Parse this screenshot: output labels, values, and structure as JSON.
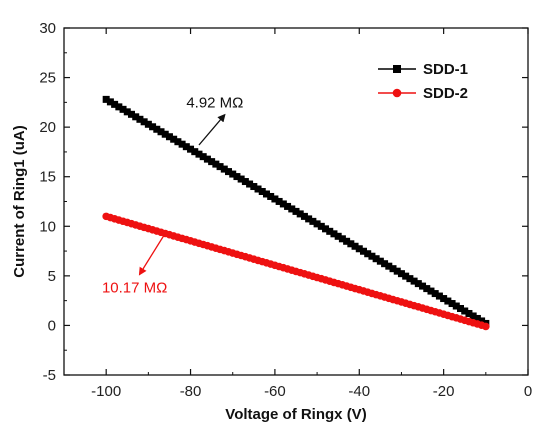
{
  "chart_data": {
    "type": "line",
    "title": "",
    "xlabel": "Voltage of Ringx (V)",
    "ylabel": "Current of Ring1 (uA)",
    "xlim": [
      -110,
      0
    ],
    "ylim": [
      -5,
      30
    ],
    "x_ticks": [
      -100,
      -80,
      -60,
      -40,
      -20,
      0
    ],
    "y_ticks": [
      -5,
      0,
      5,
      10,
      15,
      20,
      25,
      30
    ],
    "grid": false,
    "legend_position": "top-right",
    "series": [
      {
        "name": "SDD-1",
        "color": "#000000",
        "marker": "square",
        "x_start": -100,
        "x_end": -10,
        "x_step": 1,
        "y_start": 22.8,
        "y_end": 0.2
      },
      {
        "name": "SDD-2",
        "color": "#ee1111",
        "marker": "circle",
        "x_start": -100,
        "x_end": -10,
        "x_step": 1,
        "y_start": 11.0,
        "y_end": -0.1
      }
    ],
    "annotations": [
      {
        "text": "4.92 MΩ",
        "color": "#111111",
        "x": -81,
        "y": 22.0,
        "arrow_from": [
          -78,
          18.2
        ],
        "arrow_to": [
          -72,
          21.2
        ]
      },
      {
        "text": "10.17 MΩ",
        "color": "#ee1111",
        "x": -101,
        "y": 3.3,
        "arrow_from": [
          -86,
          9.3
        ],
        "arrow_to": [
          -92,
          5.2
        ]
      }
    ]
  }
}
